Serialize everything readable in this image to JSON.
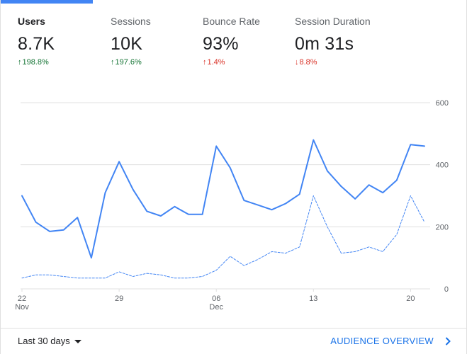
{
  "metrics": [
    {
      "label": "Users",
      "value": "8.7K",
      "change": "198.8%",
      "direction": "up"
    },
    {
      "label": "Sessions",
      "value": "10K",
      "change": "197.6%",
      "direction": "up"
    },
    {
      "label": "Bounce Rate",
      "value": "93%",
      "change": "1.4%",
      "direction": "up_bad"
    },
    {
      "label": "Session Duration",
      "value": "0m 31s",
      "change": "8.8%",
      "direction": "down"
    }
  ],
  "colors": {
    "accent": "#4285f4",
    "up": "#137333",
    "down": "#d93025",
    "grid": "#e0e0e0",
    "link": "#1a73e8"
  },
  "chart_data": {
    "type": "line",
    "x_ticks": [
      {
        "index": 0,
        "label": "22",
        "sublabel": "Nov"
      },
      {
        "index": 7,
        "label": "29",
        "sublabel": ""
      },
      {
        "index": 14,
        "label": "06",
        "sublabel": "Dec"
      },
      {
        "index": 21,
        "label": "13",
        "sublabel": ""
      },
      {
        "index": 28,
        "label": "20",
        "sublabel": ""
      }
    ],
    "y_ticks": [
      0,
      200,
      400,
      600
    ],
    "ylim": [
      0,
      600
    ],
    "grid": true,
    "series": [
      {
        "style": "solid",
        "values": [
          300,
          215,
          185,
          190,
          230,
          100,
          310,
          410,
          320,
          250,
          235,
          265,
          240,
          240,
          460,
          390,
          285,
          270,
          255,
          275,
          305,
          480,
          380,
          330,
          290,
          335,
          310,
          350,
          465,
          460
        ]
      },
      {
        "style": "dashed",
        "values": [
          35,
          45,
          45,
          40,
          35,
          35,
          35,
          55,
          40,
          50,
          45,
          35,
          35,
          40,
          60,
          105,
          75,
          95,
          120,
          115,
          135,
          300,
          200,
          115,
          120,
          135,
          120,
          175,
          300,
          215
        ]
      }
    ]
  },
  "footer": {
    "range_label": "Last 30 days",
    "overview_label": "AUDIENCE OVERVIEW"
  }
}
